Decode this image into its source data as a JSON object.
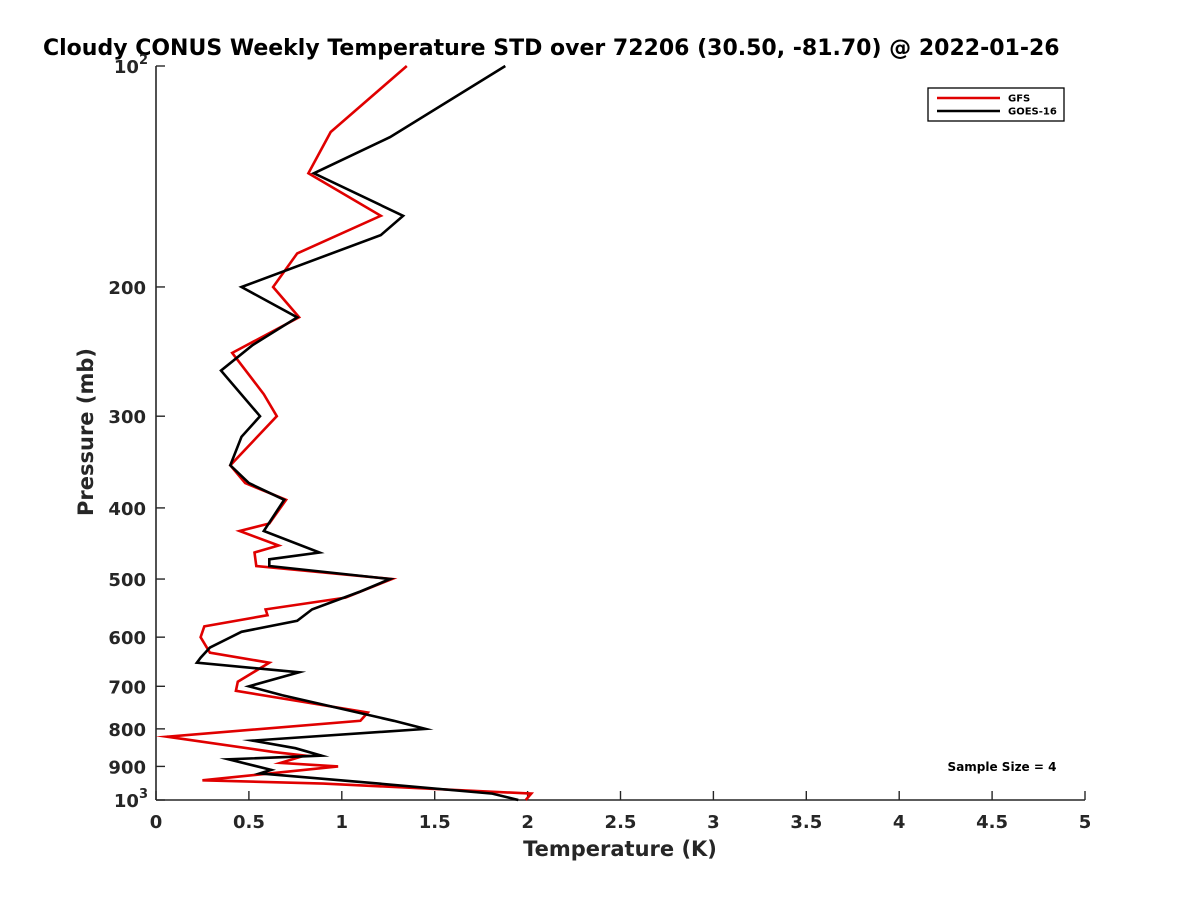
{
  "chart_data": {
    "type": "line",
    "title": "Cloudy CONUS Weekly Temperature STD over 72206 (30.50, -81.70) @ 2022-01-26",
    "xlabel": "Temperature (K)",
    "ylabel": "Pressure (mb)",
    "xlim": [
      0,
      5
    ],
    "ylim": [
      100,
      1000
    ],
    "y_scale": "log",
    "y_reversed": true,
    "grid": false,
    "legend_position": "top-right",
    "x_ticks": [
      "0",
      "0.5",
      "1",
      "1.5",
      "2",
      "2.5",
      "3",
      "3.5",
      "4",
      "4.5",
      "5"
    ],
    "y_ticks": [
      {
        "value": 100,
        "label": "10",
        "exp": "2"
      },
      {
        "value": 200,
        "label": "200"
      },
      {
        "value": 300,
        "label": "300"
      },
      {
        "value": 400,
        "label": "400"
      },
      {
        "value": 500,
        "label": "500"
      },
      {
        "value": 600,
        "label": "600"
      },
      {
        "value": 700,
        "label": "700"
      },
      {
        "value": 800,
        "label": "800"
      },
      {
        "value": 900,
        "label": "900"
      },
      {
        "value": 1000,
        "label": "10",
        "exp": "3"
      }
    ],
    "annotation": "Sample Size = 4",
    "series": [
      {
        "name": "GFS",
        "color": "#e00000",
        "points": [
          [
            1.35,
            100
          ],
          [
            0.94,
            123
          ],
          [
            0.82,
            140
          ],
          [
            1.21,
            160
          ],
          [
            0.76,
            180
          ],
          [
            0.63,
            200
          ],
          [
            0.77,
            220
          ],
          [
            0.41,
            246
          ],
          [
            0.58,
            280
          ],
          [
            0.65,
            300
          ],
          [
            0.4,
            350
          ],
          [
            0.48,
            370
          ],
          [
            0.7,
            390
          ],
          [
            0.61,
            420
          ],
          [
            0.45,
            430
          ],
          [
            0.66,
            450
          ],
          [
            0.53,
            460
          ],
          [
            0.54,
            480
          ],
          [
            1.27,
            500
          ],
          [
            1.02,
            530
          ],
          [
            0.59,
            550
          ],
          [
            0.6,
            560
          ],
          [
            0.26,
            580
          ],
          [
            0.24,
            600
          ],
          [
            0.29,
            630
          ],
          [
            0.61,
            650
          ],
          [
            0.44,
            690
          ],
          [
            0.43,
            710
          ],
          [
            1.14,
            760
          ],
          [
            1.1,
            780
          ],
          [
            0.06,
            820
          ],
          [
            0.63,
            860
          ],
          [
            0.8,
            870
          ],
          [
            0.67,
            890
          ],
          [
            0.98,
            900
          ],
          [
            0.25,
            940
          ],
          [
            0.9,
            950
          ],
          [
            2.02,
            980
          ],
          [
            1.99,
            1000
          ]
        ]
      },
      {
        "name": "GOES-16",
        "color": "#000000",
        "points": [
          [
            1.88,
            100
          ],
          [
            1.26,
            125
          ],
          [
            0.85,
            140
          ],
          [
            1.33,
            160
          ],
          [
            1.21,
            170
          ],
          [
            0.46,
            200
          ],
          [
            0.76,
            220
          ],
          [
            0.52,
            240
          ],
          [
            0.35,
            260
          ],
          [
            0.56,
            300
          ],
          [
            0.46,
            320
          ],
          [
            0.4,
            350
          ],
          [
            0.5,
            370
          ],
          [
            0.69,
            390
          ],
          [
            0.58,
            430
          ],
          [
            0.88,
            460
          ],
          [
            0.61,
            470
          ],
          [
            0.61,
            480
          ],
          [
            1.26,
            500
          ],
          [
            1.1,
            520
          ],
          [
            0.84,
            550
          ],
          [
            0.76,
            570
          ],
          [
            0.46,
            590
          ],
          [
            0.29,
            620
          ],
          [
            0.24,
            640
          ],
          [
            0.22,
            650
          ],
          [
            0.77,
            670
          ],
          [
            0.5,
            700
          ],
          [
            0.68,
            720
          ],
          [
            1.28,
            780
          ],
          [
            1.45,
            800
          ],
          [
            0.52,
            830
          ],
          [
            0.75,
            850
          ],
          [
            0.89,
            870
          ],
          [
            0.39,
            880
          ],
          [
            0.62,
            910
          ],
          [
            0.56,
            920
          ],
          [
            1.2,
            950
          ],
          [
            1.81,
            980
          ],
          [
            1.95,
            1000
          ]
        ]
      }
    ]
  }
}
